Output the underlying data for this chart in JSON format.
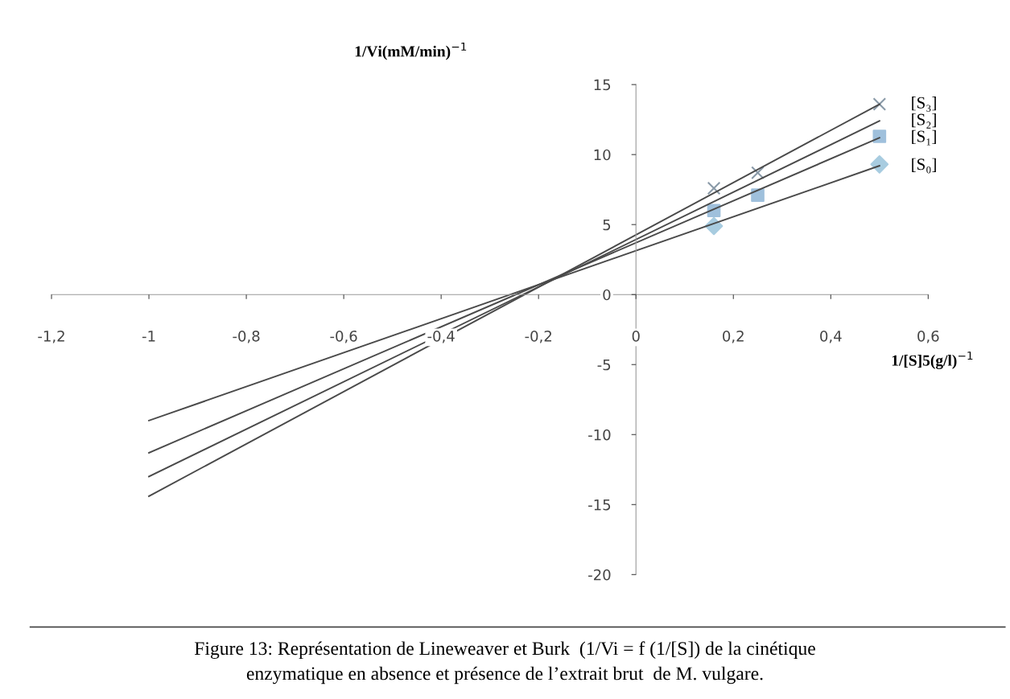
{
  "chart_data": {
    "type": "line",
    "xlabel": "1/[S]5(g/l)$^{−1}$",
    "ylabel": "1/Vi(mM/min)$^{−1}$",
    "xlim": [
      -1.2,
      0.6
    ],
    "ylim": [
      -20,
      15
    ],
    "xticks": [
      {
        "value": -1.2,
        "label": "-1,2"
      },
      {
        "value": -1,
        "label": "-1"
      },
      {
        "value": -0.8,
        "label": "-0,8"
      },
      {
        "value": -0.6,
        "label": "-0,6"
      },
      {
        "value": -0.4,
        "label": "-0,4"
      },
      {
        "value": -0.2,
        "label": "-0,2"
      },
      {
        "value": 0,
        "label": "0"
      },
      {
        "value": 0.2,
        "label": "0,2"
      },
      {
        "value": 0.4,
        "label": "0,4"
      },
      {
        "value": 0.6,
        "label": "0,6"
      }
    ],
    "yticks": [
      {
        "value": -20,
        "label": "-20"
      },
      {
        "value": -15,
        "label": "-15"
      },
      {
        "value": -10,
        "label": "-10"
      },
      {
        "value": -5,
        "label": "-5"
      },
      0,
      5,
      10,
      15
    ],
    "grid": false,
    "legend": false,
    "series": [
      {
        "name": "[S₃]",
        "color": "#4a4a4a",
        "x": [
          -1,
          0.5
        ],
        "values": [
          -14.4,
          13.6
        ],
        "marker": "none"
      },
      {
        "name": "[S₂]",
        "color": "#4a4a4a",
        "x": [
          -1,
          0.5
        ],
        "values": [
          -13.0,
          12.4
        ],
        "marker": "none"
      },
      {
        "name": "[S₁]",
        "color": "#4a4a4a",
        "x": [
          -1,
          0.5
        ],
        "values": [
          -11.3,
          11.2
        ],
        "marker": "none"
      },
      {
        "name": "[S₀]",
        "color": "#4a4a4a",
        "x": [
          -1,
          0.5
        ],
        "values": [
          -9.0,
          9.2
        ],
        "marker": "none"
      },
      {
        "type": "scatter",
        "color": "#8a9aa8",
        "x": [
          0.16,
          0.25,
          0.5
        ],
        "values": [
          7.6,
          8.7,
          13.6
        ],
        "marker": "cross"
      },
      {
        "type": "scatter",
        "color": "#9fc0dc",
        "x": [
          0.16,
          0.25,
          0.5
        ],
        "values": [
          6.0,
          7.1,
          11.3
        ],
        "marker": "square"
      },
      {
        "type": "scatter",
        "color": "#a8cce0",
        "x": [
          0.16,
          0.5
        ],
        "values": [
          4.9,
          9.3
        ],
        "marker": "diamond"
      }
    ],
    "annotations": [
      "Figure 13: Représentation de Lineweaver et Burk  (1/Vi = f (1/[S]) de la cinétique",
      "enzymatique en absence et présence de l’extrait brut  de M. vulgare."
    ]
  }
}
